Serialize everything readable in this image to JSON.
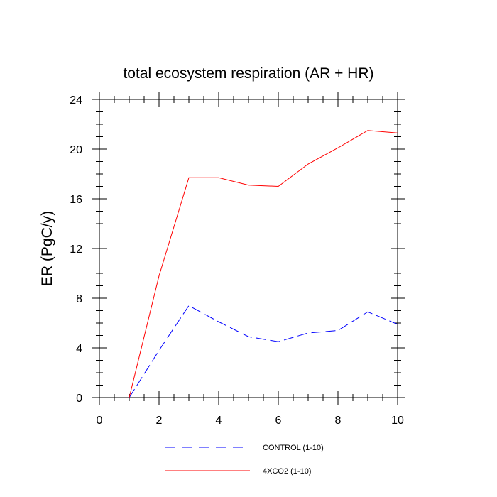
{
  "chart_data": {
    "type": "line",
    "title": "total ecosystem respiration (AR + HR)",
    "xlabel": "",
    "ylabel": "ER  (PgC/y)",
    "xlim": [
      0,
      10
    ],
    "ylim": [
      0,
      24
    ],
    "x_ticks": [
      0,
      2,
      4,
      6,
      8,
      10
    ],
    "x_tick_labels": [
      "0",
      "2",
      "4",
      "6",
      "8",
      "10"
    ],
    "y_ticks": [
      0,
      4,
      8,
      12,
      16,
      20,
      24
    ],
    "y_tick_labels": [
      "0",
      "4",
      "8",
      "12",
      "16",
      "20",
      "24"
    ],
    "grid": false,
    "legend_position": "bottom",
    "x": [
      1,
      2,
      3,
      4,
      5,
      6,
      7,
      8,
      9,
      10
    ],
    "series": [
      {
        "name": "CONTROL (1-10)",
        "color": "#0000ff",
        "dash": "dashed",
        "values": [
          0.0,
          3.8,
          7.4,
          6.1,
          4.9,
          4.5,
          5.2,
          5.4,
          6.9,
          5.9
        ]
      },
      {
        "name": "4XCO2 (1-10)",
        "color": "#ff0000",
        "dash": "solid",
        "values": [
          0.0,
          9.8,
          17.7,
          17.7,
          17.1,
          17.0,
          18.8,
          20.1,
          21.5,
          21.3
        ]
      }
    ]
  }
}
